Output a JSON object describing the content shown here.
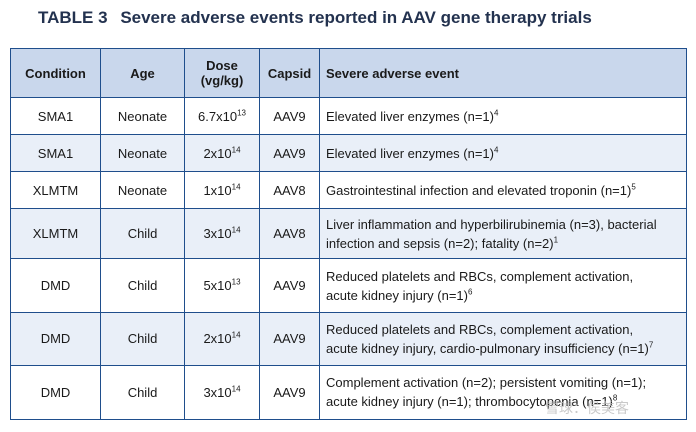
{
  "title": {
    "label": "TABLE 3",
    "text": "Severe adverse events reported in AAV gene therapy trials"
  },
  "table": {
    "headers": {
      "condition": "Condition",
      "age": "Age",
      "dose_line1": "Dose",
      "dose_line2": "(vg/kg)",
      "capsid": "Capsid",
      "event": "Severe adverse event"
    },
    "rows": [
      {
        "condition": "SMA1",
        "age": "Neonate",
        "dose_base": "6.7x10",
        "dose_exp": "13",
        "capsid": "AAV9",
        "event_lines": [
          "Elevated liver enzymes (n=1)"
        ],
        "event_ref": "4"
      },
      {
        "condition": "SMA1",
        "age": "Neonate",
        "dose_base": "2x10",
        "dose_exp": "14",
        "capsid": "AAV9",
        "event_lines": [
          "Elevated liver enzymes (n=1)"
        ],
        "event_ref": "4"
      },
      {
        "condition": "XLMTM",
        "age": "Neonate",
        "dose_base": "1x10",
        "dose_exp": "14",
        "capsid": "AAV8",
        "event_lines": [
          "Gastrointestinal infection and elevated troponin (n=1)"
        ],
        "event_ref": "5"
      },
      {
        "condition": "XLMTM",
        "age": "Child",
        "dose_base": "3x10",
        "dose_exp": "14",
        "capsid": "AAV8",
        "event_lines": [
          "Liver inflammation and hyperbilirubinemia (n=3), bacterial",
          "infection and sepsis (n=2); fatality (n=2)"
        ],
        "event_ref": "1"
      },
      {
        "condition": "DMD",
        "age": "Child",
        "dose_base": "5x10",
        "dose_exp": "13",
        "capsid": "AAV9",
        "event_lines": [
          "Reduced platelets and RBCs, complement activation,",
          "acute kidney injury (n=1)"
        ],
        "event_ref": "6"
      },
      {
        "condition": "DMD",
        "age": "Child",
        "dose_base": "2x10",
        "dose_exp": "14",
        "capsid": "AAV9",
        "event_lines": [
          "Reduced platelets and RBCs, complement activation,",
          "acute kidney injury, cardio-pulmonary insufficiency (n=1)"
        ],
        "event_ref": "7"
      },
      {
        "condition": "DMD",
        "age": "Child",
        "dose_base": "3x10",
        "dose_exp": "14",
        "capsid": "AAV9",
        "event_lines": [
          "Complement activation (n=2); persistent vomiting (n=1);",
          "acute kidney injury (n=1); thrombocytopenia (n=1)"
        ],
        "event_ref": "8"
      }
    ]
  },
  "watermark": "雪球：侯美客"
}
